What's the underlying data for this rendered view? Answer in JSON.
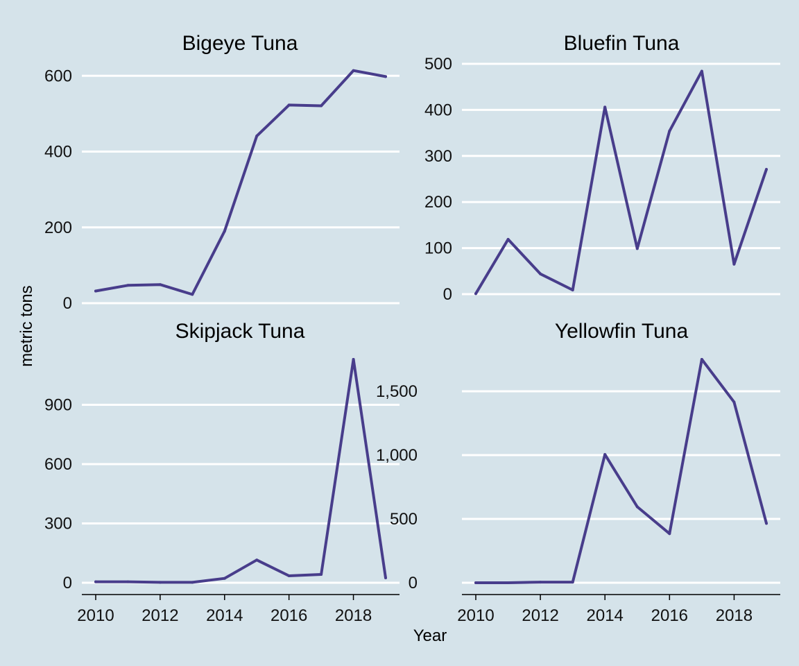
{
  "colors": {
    "background": "#d5e3ea",
    "grid": "#ffffff",
    "series": "#483d8b"
  },
  "chart_data": [
    {
      "type": "line",
      "title": "Bigeye Tuna",
      "x": [
        2010,
        2011,
        2012,
        2013,
        2014,
        2015,
        2016,
        2017,
        2018,
        2019
      ],
      "series": [
        {
          "values": [
            32,
            47,
            49,
            23,
            190,
            441,
            523,
            521,
            614,
            598
          ]
        }
      ],
      "xlim": [
        2010,
        2019
      ],
      "ylim": [
        0,
        650
      ],
      "yticks": [
        0,
        200,
        400,
        600
      ],
      "ytick_labels": [
        "0",
        "200",
        "400",
        "600"
      ],
      "grid": true
    },
    {
      "type": "line",
      "title": "Bluefin Tuna",
      "x": [
        2010,
        2011,
        2012,
        2013,
        2014,
        2015,
        2016,
        2017,
        2018,
        2019
      ],
      "series": [
        {
          "values": [
            1,
            119,
            44,
            9,
            406,
            99,
            354,
            484,
            65,
            271
          ]
        }
      ],
      "xlim": [
        2010,
        2019
      ],
      "ylim": [
        0,
        500
      ],
      "yticks": [
        0,
        100,
        200,
        300,
        400,
        500
      ],
      "ytick_labels": [
        "0",
        "100",
        "200",
        "300",
        "400",
        "500"
      ],
      "grid": true
    },
    {
      "type": "line",
      "title": "Skipjack Tuna",
      "x": [
        2010,
        2011,
        2012,
        2013,
        2014,
        2015,
        2016,
        2017,
        2018,
        2019
      ],
      "series": [
        {
          "values": [
            5,
            5,
            2,
            2,
            22,
            115,
            35,
            42,
            1130,
            25
          ]
        }
      ],
      "xlim": [
        2010,
        2019
      ],
      "ylim": [
        0,
        1130
      ],
      "yticks": [
        0,
        300,
        600,
        900
      ],
      "ytick_labels": [
        "0",
        "300",
        "600",
        "900"
      ],
      "xticks": [
        2010,
        2012,
        2014,
        2016,
        2018
      ],
      "xtick_labels": [
        "2010",
        "2012",
        "2014",
        "2016",
        "2018"
      ],
      "grid": true
    },
    {
      "type": "line",
      "title": "Yellowfin Tuna",
      "x": [
        2010,
        2011,
        2012,
        2013,
        2014,
        2015,
        2016,
        2017,
        2018,
        2019
      ],
      "series": [
        {
          "values": [
            0,
            0,
            5,
            5,
            1005,
            595,
            385,
            1750,
            1415,
            465
          ]
        }
      ],
      "xlim": [
        2010,
        2019
      ],
      "ylim": [
        0,
        1750
      ],
      "yticks": [
        0,
        500,
        1000,
        1500
      ],
      "ytick_labels": [
        "0",
        "500",
        "1,000",
        "1,500"
      ],
      "xticks": [
        2010,
        2012,
        2014,
        2016,
        2018
      ],
      "xtick_labels": [
        "2010",
        "2012",
        "2014",
        "2016",
        "2018"
      ],
      "grid": true
    }
  ],
  "labels": {
    "xlabel": "Year",
    "ylabel": "metric tons"
  }
}
